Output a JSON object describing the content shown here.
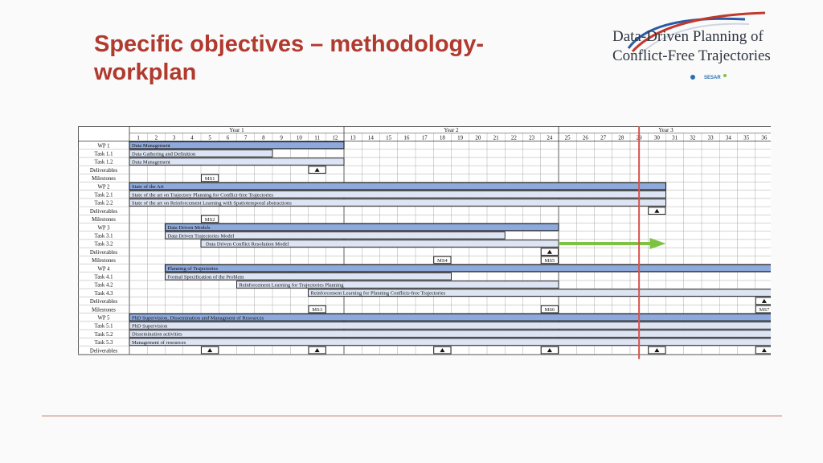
{
  "slide": {
    "title": "Specific objectives – methodology-workplan"
  },
  "logo": {
    "line1": "Data-Driven Planning of",
    "line2": "Conflict-Free Trajectories",
    "partner": "SESAR"
  },
  "gantt": {
    "years": [
      "Year 1",
      "Year 2",
      "Year 3"
    ],
    "months": [
      "1",
      "2",
      "3",
      "4",
      "5",
      "6",
      "7",
      "8",
      "9",
      "10",
      "11",
      "12",
      "13",
      "14",
      "15",
      "16",
      "17",
      "18",
      "19",
      "20",
      "21",
      "22",
      "23",
      "24",
      "25",
      "26",
      "27",
      "28",
      "29",
      "30",
      "31",
      "32",
      "33",
      "34",
      "35",
      "36"
    ],
    "current_month": 29.5,
    "rows": [
      {
        "label": "WP 1",
        "type": "wp",
        "bar": {
          "start": 1,
          "end": 12,
          "label": "Data Management"
        }
      },
      {
        "label": "Task 1.1",
        "type": "task",
        "bar": {
          "start": 1,
          "end": 8,
          "label": "Data Gathering and Definition"
        }
      },
      {
        "label": "Task 1.2",
        "type": "task",
        "bar": {
          "start": 1,
          "end": 12,
          "label": "Data Management"
        }
      },
      {
        "label": "Deliverables",
        "type": "deliv",
        "marks": [
          {
            "month": 11
          }
        ]
      },
      {
        "label": "Milestones",
        "type": "mile",
        "marks": [
          {
            "month": 5,
            "label": "MS1"
          }
        ]
      },
      {
        "label": "WP 2",
        "type": "wp",
        "bar": {
          "start": 1,
          "end": 30,
          "label": "State of the Art"
        }
      },
      {
        "label": "Task 2.1",
        "type": "task",
        "bar": {
          "start": 1,
          "end": 30,
          "label": "State of the art on Trajectory Planning for Conflict-free Trajectories"
        }
      },
      {
        "label": "Task 2.2",
        "type": "task",
        "bar": {
          "start": 1,
          "end": 30,
          "label": "State of the art on Reinforcement Learning with Spatiotemporal abstractions"
        }
      },
      {
        "label": "Deliverables",
        "type": "deliv",
        "marks": [
          {
            "month": 30
          }
        ]
      },
      {
        "label": "Milestones",
        "type": "mile",
        "marks": [
          {
            "month": 5,
            "label": "MS2"
          }
        ]
      },
      {
        "label": "WP 3",
        "type": "wp",
        "bar": {
          "start": 3,
          "end": 24,
          "label": "Data Driven Models"
        }
      },
      {
        "label": "Task 3.1",
        "type": "task",
        "bar": {
          "start": 3,
          "end": 21,
          "label": "Data Driven Trajectories Model"
        }
      },
      {
        "label": "Task 3.2",
        "type": "task",
        "bar": {
          "start": 5,
          "end": 24,
          "label": "Data Driven Conflict Resolution Model"
        },
        "extension": {
          "start": 25,
          "end": 30
        }
      },
      {
        "label": "Deliverables",
        "type": "deliv",
        "marks": [
          {
            "month": 24
          }
        ]
      },
      {
        "label": "Milestones",
        "type": "mile",
        "marks": [
          {
            "month": 18,
            "label": "MS4"
          },
          {
            "month": 24,
            "label": "MS5"
          }
        ]
      },
      {
        "label": "WP 4",
        "type": "wp",
        "bar": {
          "start": 3,
          "end": 36,
          "label": "Planning of Trajectories"
        }
      },
      {
        "label": "Task 4.1",
        "type": "task",
        "bar": {
          "start": 3,
          "end": 18,
          "label": "Formal Specification of the Problem"
        }
      },
      {
        "label": "Task 4.2",
        "type": "task",
        "bar": {
          "start": 7,
          "end": 24,
          "label": "Reinforcement Learning for Trajectories Planning"
        }
      },
      {
        "label": "Task 4.3",
        "type": "task",
        "bar": {
          "start": 11,
          "end": 36,
          "label": "Reinforcement Learning for Planning Conflicts-free Trajectories"
        }
      },
      {
        "label": "Deliverables",
        "type": "deliv",
        "marks": [
          {
            "month": 36
          }
        ]
      },
      {
        "label": "Milestones",
        "type": "mile",
        "marks": [
          {
            "month": 11,
            "label": "MS3"
          },
          {
            "month": 24,
            "label": "MS6"
          },
          {
            "month": 36,
            "label": "MS7"
          }
        ]
      },
      {
        "label": "WP 5",
        "type": "wp",
        "bar": {
          "start": 1,
          "end": 36,
          "label": "PhD Supervision, Dissemination and Managment of Resources"
        }
      },
      {
        "label": "Task 5.1",
        "type": "task",
        "bar": {
          "start": 1,
          "end": 36,
          "label": "PhD Supervision"
        }
      },
      {
        "label": "Task 5.2",
        "type": "task",
        "bar": {
          "start": 1,
          "end": 36,
          "label": "Dissemination activities"
        }
      },
      {
        "label": "Task 5.3",
        "type": "task",
        "bar": {
          "start": 1,
          "end": 36,
          "label": "Management of resources"
        }
      },
      {
        "label": "Deliverables",
        "type": "deliv",
        "marks": [
          {
            "month": 5
          },
          {
            "month": 11
          },
          {
            "month": 18
          },
          {
            "month": 24
          },
          {
            "month": 30
          },
          {
            "month": 36
          }
        ]
      }
    ]
  },
  "colors": {
    "title": "#b03a2e",
    "wp_bar": "#8ea9db",
    "task_bar": "#dde4f3",
    "current_line": "#d9534f",
    "extension_arrow": "#7dc242"
  }
}
